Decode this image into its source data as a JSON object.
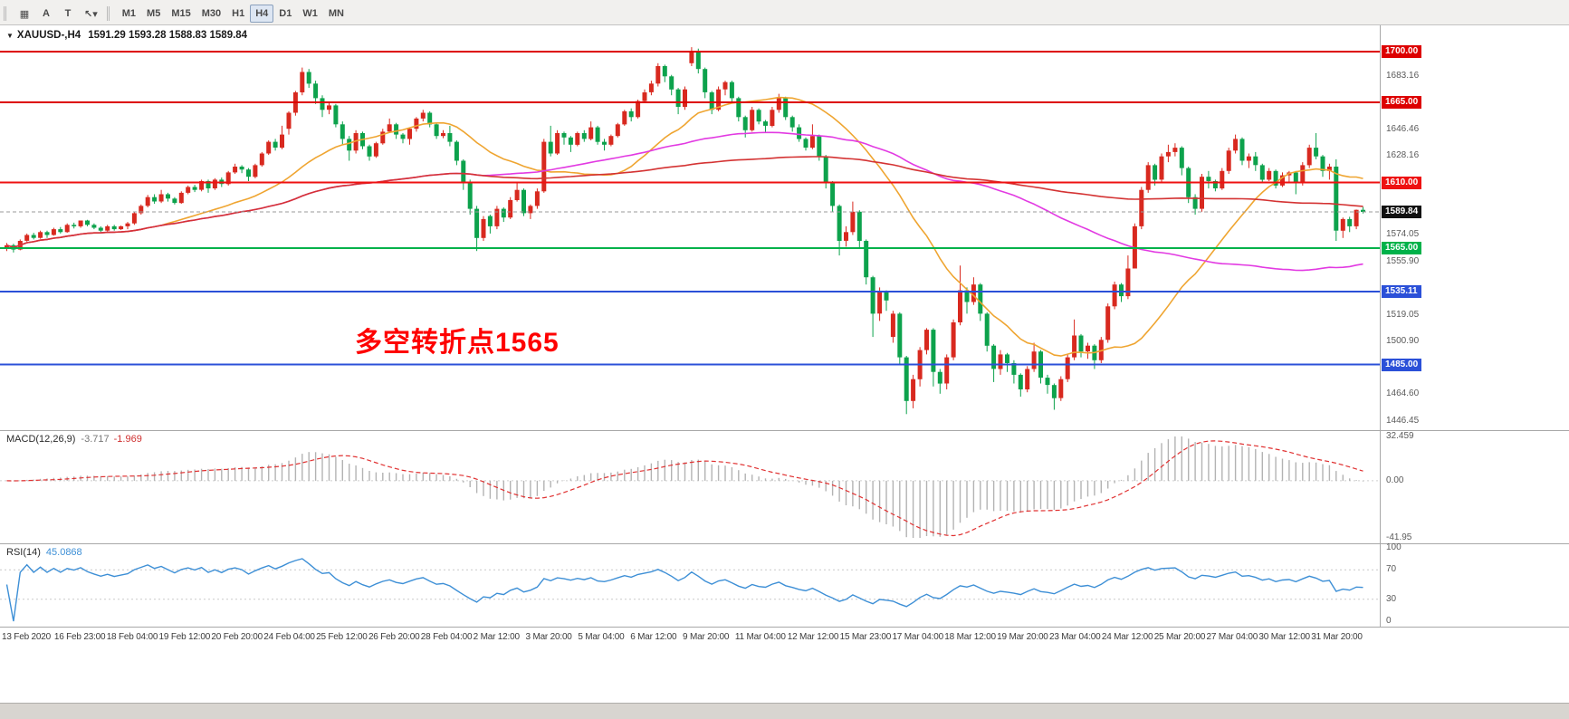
{
  "window": {
    "title": "XAUUSD H4 chart"
  },
  "toolbar": {
    "tool_buttons": [
      {
        "name": "chart-window-icon",
        "glyph": "▦"
      },
      {
        "name": "cursor-tool-button",
        "glyph": "A"
      },
      {
        "name": "text-tool-button",
        "glyph": "T"
      },
      {
        "name": "draw-tools-button",
        "glyph": "↖▾"
      }
    ],
    "timeframes": [
      "M1",
      "M5",
      "M15",
      "M30",
      "H1",
      "H4",
      "D1",
      "W1",
      "MN"
    ],
    "active_timeframe": "H4"
  },
  "chart": {
    "symbol_period": "XAUUSD-,H4",
    "ohlc_text": "1591.29 1593.28 1588.83 1589.84",
    "annotation": {
      "text": "多空转折点1565",
      "color": "#fe0000"
    },
    "y_min": 1440,
    "y_max": 1718,
    "up_color": "#d8291f",
    "down_color": "#0da24c",
    "ma_periods": {
      "fast": 24,
      "mid": 72,
      "slow": 144
    },
    "ma_colors": {
      "fast": "#efa531",
      "mid": "#e23ae2",
      "slow": "#d43333"
    },
    "axis_ticks": [
      {
        "label": "1683.16",
        "value": 1683.16
      },
      {
        "label": "1646.46",
        "value": 1646.46
      },
      {
        "label": "1628.16",
        "value": 1628.16
      },
      {
        "label": "1574.05",
        "value": 1574.05
      },
      {
        "label": "1555.90",
        "value": 1555.9
      },
      {
        "label": "1519.05",
        "value": 1519.05
      },
      {
        "label": "1500.90",
        "value": 1500.9
      },
      {
        "label": "1464.60",
        "value": 1464.6
      },
      {
        "label": "1446.45",
        "value": 1446.45
      }
    ],
    "levels": [
      {
        "label": "1700.00",
        "value": 1700.0,
        "line_color": "#dd0000",
        "badge_color": "#dd0000",
        "width": 2,
        "current": false
      },
      {
        "label": "1665.00",
        "value": 1665.0,
        "line_color": "#dd0000",
        "badge_color": "#dd0000",
        "width": 2,
        "current": false
      },
      {
        "label": "1610.00",
        "value": 1610.0,
        "line_color": "#ee1111",
        "badge_color": "#ee1111",
        "width": 2,
        "current": false
      },
      {
        "label": "1565.00",
        "value": 1565.0,
        "line_color": "#00b24a",
        "badge_color": "#00b24a",
        "width": 2,
        "current": false
      },
      {
        "label": "1535.11",
        "value": 1535.11,
        "line_color": "#2b50d8",
        "badge_color": "#2b50d8",
        "width": 2,
        "current": false
      },
      {
        "label": "1485.00",
        "value": 1485.0,
        "line_color": "#2b50d8",
        "badge_color": "#2b50d8",
        "width": 2,
        "current": false
      },
      {
        "label": "1589.84",
        "value": 1589.84,
        "line_color": "#9a9a9a",
        "badge_color": "#111111",
        "width": 1,
        "current": true
      }
    ]
  },
  "macd": {
    "label": "MACD(12,26,9)",
    "value_macd": "-3.717",
    "value_signal": "-1.969",
    "fast": 12,
    "slow": 26,
    "signal": 9,
    "bar_color": "#b3b3b3",
    "signal_color": "#e03131",
    "range": {
      "min": -41.95,
      "max": 32.459
    },
    "axis": [
      {
        "label": "32.459",
        "value": 32.459
      },
      {
        "label": "0.00",
        "value": 0
      },
      {
        "label": "-41.95",
        "value": -41.95
      }
    ]
  },
  "rsi": {
    "label": "RSI(14)",
    "value_text": "45.0868",
    "period": 14,
    "line_color": "#3d8fd6",
    "levels": [
      70,
      30
    ],
    "axis": [
      {
        "label": "100",
        "value": 100
      },
      {
        "label": "70",
        "value": 70
      },
      {
        "label": "30",
        "value": 30
      },
      {
        "label": "0",
        "value": 0
      }
    ]
  },
  "chart_data": {
    "type": "candlestick",
    "symbol": "XAUUSD",
    "timeframe": "H4",
    "title": "XAUUSD-,H4 1591.29 1593.28 1588.83 1589.84",
    "x_labels": [
      "13 Feb 2020",
      "16 Feb 23:00",
      "18 Feb 04:00",
      "19 Feb 12:00",
      "20 Feb 20:00",
      "24 Feb 04:00",
      "25 Feb 12:00",
      "26 Feb 20:00",
      "28 Feb 04:00",
      "2 Mar 12:00",
      "3 Mar 20:00",
      "5 Mar 04:00",
      "6 Mar 12:00",
      "9 Mar 20:00",
      "11 Mar 04:00",
      "12 Mar 12:00",
      "15 Mar 23:00",
      "17 Mar 04:00",
      "18 Mar 12:00",
      "19 Mar 20:00",
      "23 Mar 04:00",
      "24 Mar 12:00",
      "25 Mar 20:00",
      "27 Mar 04:00",
      "30 Mar 12:00",
      "31 Mar 20:00"
    ],
    "candles": [
      [
        1565,
        1568.5,
        1563,
        1567
      ],
      [
        1567,
        1568,
        1562,
        1564
      ],
      [
        1564,
        1571,
        1563.5,
        1570
      ],
      [
        1570,
        1575,
        1569.5,
        1574
      ],
      [
        1574,
        1575.5,
        1571,
        1572
      ],
      [
        1572,
        1577,
        1571.5,
        1576
      ],
      [
        1576,
        1577,
        1572,
        1574
      ],
      [
        1574,
        1579,
        1573.5,
        1578
      ],
      [
        1578,
        1579.5,
        1575,
        1576
      ],
      [
        1576,
        1582,
        1575.5,
        1581
      ],
      [
        1581,
        1582.5,
        1578.5,
        1580
      ],
      [
        1580,
        1584,
        1579,
        1584
      ],
      [
        1584,
        1584.5,
        1580,
        1581
      ],
      [
        1581,
        1582,
        1578,
        1579
      ],
      [
        1579,
        1580,
        1576,
        1577
      ],
      [
        1577,
        1581,
        1576.5,
        1580
      ],
      [
        1580,
        1581,
        1577,
        1578
      ],
      [
        1578,
        1580.5,
        1577.5,
        1580
      ],
      [
        1580,
        1583,
        1578,
        1582
      ],
      [
        1582,
        1590,
        1581,
        1589
      ],
      [
        1589,
        1595,
        1588,
        1594
      ],
      [
        1594,
        1601.5,
        1593,
        1600
      ],
      [
        1600,
        1602,
        1595.5,
        1597
      ],
      [
        1597,
        1605,
        1596,
        1602
      ],
      [
        1602,
        1603,
        1597,
        1599
      ],
      [
        1599,
        1600,
        1595,
        1596
      ],
      [
        1596,
        1604,
        1595.5,
        1603
      ],
      [
        1603,
        1608,
        1602,
        1607
      ],
      [
        1607,
        1608.5,
        1603.5,
        1605
      ],
      [
        1605,
        1612,
        1604,
        1611
      ],
      [
        1611,
        1612,
        1603,
        1606
      ],
      [
        1606,
        1613,
        1605,
        1612
      ],
      [
        1612,
        1613.5,
        1607,
        1609
      ],
      [
        1609,
        1618,
        1608,
        1617
      ],
      [
        1617,
        1623,
        1616,
        1621
      ],
      [
        1621,
        1622,
        1616.5,
        1619
      ],
      [
        1619,
        1620,
        1611,
        1614
      ],
      [
        1614,
        1623,
        1613,
        1622
      ],
      [
        1622,
        1631,
        1621,
        1630
      ],
      [
        1630,
        1639,
        1629,
        1638
      ],
      [
        1638,
        1640,
        1632,
        1634
      ],
      [
        1634,
        1649,
        1633,
        1643
      ],
      [
        1647,
        1659,
        1643,
        1658
      ],
      [
        1658,
        1673,
        1656,
        1672
      ],
      [
        1672,
        1689,
        1670,
        1686
      ],
      [
        1686,
        1688,
        1675,
        1678
      ],
      [
        1678,
        1680,
        1664,
        1668
      ],
      [
        1668,
        1670,
        1655,
        1660
      ],
      [
        1660,
        1665,
        1657,
        1663
      ],
      [
        1663,
        1664,
        1648,
        1650
      ],
      [
        1650,
        1652,
        1636,
        1640
      ],
      [
        1640,
        1642,
        1625,
        1632
      ],
      [
        1632,
        1646,
        1630,
        1644
      ],
      [
        1644,
        1645,
        1633,
        1635
      ],
      [
        1635,
        1636,
        1625,
        1628
      ],
      [
        1628,
        1638,
        1627,
        1637
      ],
      [
        1637,
        1647,
        1636,
        1645
      ],
      [
        1645,
        1654,
        1644,
        1650
      ],
      [
        1650,
        1651,
        1640,
        1643
      ],
      [
        1643,
        1644,
        1637,
        1640
      ],
      [
        1640,
        1648,
        1636,
        1647
      ],
      [
        1647,
        1655,
        1645,
        1654
      ],
      [
        1654,
        1660,
        1652,
        1658
      ],
      [
        1658,
        1659,
        1648,
        1650
      ],
      [
        1650,
        1651,
        1640,
        1642
      ],
      [
        1642,
        1646,
        1640.5,
        1644
      ],
      [
        1644,
        1649,
        1635,
        1638
      ],
      [
        1638,
        1639,
        1622,
        1625
      ],
      [
        1625,
        1626,
        1605,
        1610
      ],
      [
        1610,
        1612,
        1588,
        1592
      ],
      [
        1592,
        1594,
        1563,
        1572
      ],
      [
        1572,
        1587,
        1570,
        1585
      ],
      [
        1587,
        1588,
        1575,
        1580
      ],
      [
        1580,
        1594,
        1578,
        1592
      ],
      [
        1592,
        1593,
        1583,
        1586
      ],
      [
        1586,
        1600,
        1585,
        1598
      ],
      [
        1598,
        1610,
        1597,
        1605
      ],
      [
        1605,
        1606,
        1587,
        1589
      ],
      [
        1589,
        1595,
        1585,
        1594
      ],
      [
        1594,
        1606,
        1592,
        1604
      ],
      [
        1604,
        1640,
        1603,
        1638
      ],
      [
        1638,
        1649,
        1628,
        1630
      ],
      [
        1630,
        1646,
        1629,
        1644
      ],
      [
        1644,
        1645,
        1636,
        1641
      ],
      [
        1641,
        1642,
        1631,
        1636
      ],
      [
        1636,
        1645,
        1635,
        1644
      ],
      [
        1644,
        1646,
        1638,
        1640
      ],
      [
        1640,
        1652,
        1639,
        1648
      ],
      [
        1648,
        1649,
        1636,
        1638
      ],
      [
        1638,
        1640,
        1632,
        1636
      ],
      [
        1636,
        1643,
        1635,
        1642
      ],
      [
        1642,
        1651,
        1641,
        1650
      ],
      [
        1650,
        1660,
        1649,
        1659
      ],
      [
        1659,
        1661,
        1652,
        1655
      ],
      [
        1655,
        1667,
        1654,
        1666
      ],
      [
        1666,
        1674,
        1665,
        1672
      ],
      [
        1672,
        1680,
        1670,
        1678
      ],
      [
        1678,
        1692,
        1676,
        1690
      ],
      [
        1690,
        1691,
        1679,
        1683
      ],
      [
        1683,
        1684,
        1670,
        1674
      ],
      [
        1674,
        1675,
        1657,
        1662
      ],
      [
        1662,
        1676,
        1660,
        1674
      ],
      [
        1692,
        1703,
        1690,
        1700
      ],
      [
        1700,
        1702,
        1685,
        1688
      ],
      [
        1688,
        1689,
        1668,
        1672
      ],
      [
        1672,
        1673,
        1657,
        1660
      ],
      [
        1660,
        1676,
        1659,
        1674
      ],
      [
        1674,
        1680,
        1670,
        1679
      ],
      [
        1679,
        1680,
        1665,
        1668
      ],
      [
        1668,
        1669,
        1652,
        1655
      ],
      [
        1655,
        1656,
        1641,
        1646
      ],
      [
        1646,
        1662,
        1645,
        1660
      ],
      [
        1660,
        1661,
        1650,
        1652
      ],
      [
        1652,
        1653,
        1644,
        1649
      ],
      [
        1649,
        1662,
        1648,
        1660
      ],
      [
        1660,
        1671,
        1658,
        1668
      ],
      [
        1668,
        1669,
        1653,
        1655
      ],
      [
        1655,
        1656,
        1645,
        1648
      ],
      [
        1648,
        1650,
        1638,
        1640
      ],
      [
        1640,
        1641,
        1632,
        1634
      ],
      [
        1634,
        1650,
        1633,
        1642
      ],
      [
        1642,
        1643,
        1625,
        1628
      ],
      [
        1628,
        1629,
        1606,
        1610
      ],
      [
        1610,
        1611,
        1590,
        1594
      ],
      [
        1594,
        1595,
        1560,
        1570
      ],
      [
        1570,
        1580,
        1566,
        1576
      ],
      [
        1576,
        1597,
        1574,
        1590
      ],
      [
        1590,
        1591,
        1565,
        1570
      ],
      [
        1570,
        1571,
        1540,
        1545
      ],
      [
        1545,
        1546,
        1504,
        1520
      ],
      [
        1520,
        1538,
        1515,
        1535
      ],
      [
        1535,
        1536,
        1522,
        1529
      ],
      [
        1504,
        1522,
        1500,
        1520
      ],
      [
        1520,
        1521,
        1485,
        1490
      ],
      [
        1490,
        1491,
        1451,
        1460
      ],
      [
        1460,
        1478,
        1455,
        1475
      ],
      [
        1475,
        1497,
        1470,
        1495
      ],
      [
        1495,
        1510,
        1492,
        1509
      ],
      [
        1509,
        1510,
        1470,
        1480
      ],
      [
        1480,
        1482,
        1465,
        1472
      ],
      [
        1472,
        1492,
        1468,
        1490
      ],
      [
        1490,
        1516,
        1488,
        1514
      ],
      [
        1514,
        1553,
        1512,
        1536
      ],
      [
        1536,
        1538,
        1520,
        1528
      ],
      [
        1528,
        1545,
        1526,
        1540
      ],
      [
        1540,
        1541,
        1515,
        1520
      ],
      [
        1520,
        1521,
        1494,
        1498
      ],
      [
        1498,
        1499,
        1473,
        1482
      ],
      [
        1482,
        1495,
        1478,
        1492
      ],
      [
        1492,
        1493,
        1480,
        1486
      ],
      [
        1486,
        1488,
        1472,
        1478
      ],
      [
        1478,
        1479,
        1463,
        1468
      ],
      [
        1468,
        1484,
        1466,
        1482
      ],
      [
        1482,
        1500,
        1480,
        1494
      ],
      [
        1494,
        1495,
        1472,
        1476
      ],
      [
        1476,
        1478,
        1465,
        1471
      ],
      [
        1471,
        1472,
        1454,
        1462
      ],
      [
        1462,
        1477,
        1460,
        1475
      ],
      [
        1475,
        1492,
        1473,
        1490
      ],
      [
        1490,
        1516,
        1488,
        1505
      ],
      [
        1505,
        1506,
        1490,
        1494
      ],
      [
        1494,
        1500,
        1489,
        1498
      ],
      [
        1498,
        1499,
        1482,
        1488
      ],
      [
        1488,
        1504,
        1486,
        1502
      ],
      [
        1502,
        1527,
        1500,
        1525
      ],
      [
        1525,
        1542,
        1523,
        1540
      ],
      [
        1540,
        1541,
        1528,
        1532
      ],
      [
        1532,
        1560,
        1530,
        1551
      ],
      [
        1551,
        1582,
        1551,
        1580
      ],
      [
        1580,
        1607,
        1578,
        1605
      ],
      [
        1605,
        1624,
        1603,
        1622
      ],
      [
        1622,
        1623,
        1608,
        1612
      ],
      [
        1612,
        1630,
        1610,
        1628
      ],
      [
        1628,
        1636,
        1624,
        1631
      ],
      [
        1631,
        1637,
        1628,
        1634
      ],
      [
        1634,
        1635,
        1615,
        1620
      ],
      [
        1620,
        1621,
        1596,
        1600
      ],
      [
        1600,
        1602,
        1588,
        1592
      ],
      [
        1592,
        1616,
        1590,
        1614
      ],
      [
        1614,
        1618,
        1606,
        1611
      ],
      [
        1611,
        1612,
        1604,
        1606
      ],
      [
        1606,
        1620,
        1605,
        1618
      ],
      [
        1618,
        1634,
        1616,
        1632
      ],
      [
        1632,
        1643,
        1630,
        1640
      ],
      [
        1640,
        1641,
        1622,
        1625
      ],
      [
        1625,
        1630,
        1620,
        1628
      ],
      [
        1628,
        1631,
        1618,
        1622
      ],
      [
        1622,
        1623,
        1610,
        1612
      ],
      [
        1612,
        1620,
        1611,
        1618
      ],
      [
        1618,
        1619,
        1606,
        1608
      ],
      [
        1608,
        1617,
        1607,
        1615
      ],
      [
        1615,
        1618,
        1610,
        1617
      ],
      [
        1617,
        1618,
        1602,
        1610
      ],
      [
        1610,
        1624,
        1608,
        1622
      ],
      [
        1622,
        1636,
        1620,
        1634
      ],
      [
        1634,
        1644,
        1626,
        1628
      ],
      [
        1628,
        1629,
        1614,
        1618
      ],
      [
        1618,
        1623,
        1612,
        1621
      ],
      [
        1621,
        1626,
        1570,
        1577
      ],
      [
        1577,
        1586,
        1572,
        1585
      ],
      [
        1585,
        1586.5,
        1576,
        1580
      ],
      [
        1580,
        1591.5,
        1578,
        1591.29
      ],
      [
        1591.29,
        1593.28,
        1588.83,
        1589.84
      ]
    ]
  }
}
